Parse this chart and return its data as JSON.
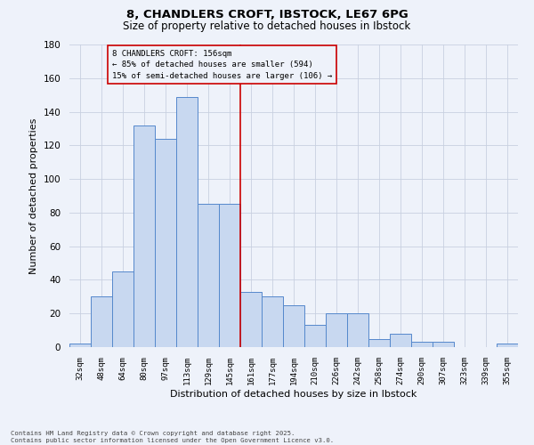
{
  "title_line1": "8, CHANDLERS CROFT, IBSTOCK, LE67 6PG",
  "title_line2": "Size of property relative to detached houses in Ibstock",
  "xlabel": "Distribution of detached houses by size in Ibstock",
  "ylabel": "Number of detached properties",
  "categories": [
    "32sqm",
    "48sqm",
    "64sqm",
    "80sqm",
    "97sqm",
    "113sqm",
    "129sqm",
    "145sqm",
    "161sqm",
    "177sqm",
    "194sqm",
    "210sqm",
    "226sqm",
    "242sqm",
    "258sqm",
    "274sqm",
    "290sqm",
    "307sqm",
    "323sqm",
    "339sqm",
    "355sqm"
  ],
  "values": [
    2,
    30,
    45,
    132,
    124,
    149,
    85,
    85,
    33,
    30,
    25,
    13,
    20,
    20,
    5,
    8,
    3,
    3,
    0,
    0,
    2
  ],
  "bar_color": "#c8d8f0",
  "bar_edge_color": "#5588cc",
  "reference_line_color": "#cc0000",
  "annotation_text": "8 CHANDLERS CROFT: 156sqm\n← 85% of detached houses are smaller (594)\n15% of semi-detached houses are larger (106) →",
  "annotation_box_color": "#cc0000",
  "ylim": [
    0,
    180
  ],
  "yticks": [
    0,
    20,
    40,
    60,
    80,
    100,
    120,
    140,
    160,
    180
  ],
  "footer_line1": "Contains HM Land Registry data © Crown copyright and database right 2025.",
  "footer_line2": "Contains public sector information licensed under the Open Government Licence v3.0.",
  "background_color": "#eef2fa",
  "grid_color": "#c8d0e0"
}
